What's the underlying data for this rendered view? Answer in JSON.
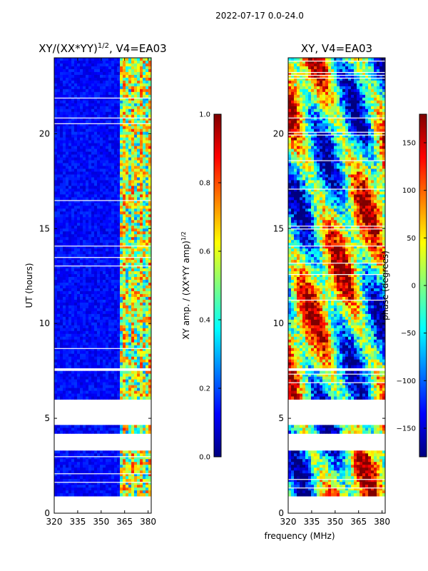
{
  "suptitle": "2022-07-17 0.0-24.0",
  "shared_xlabel": "frequency (MHz)",
  "colors": {
    "jet_stops": [
      "#00007f",
      "#0000ff",
      "#007fff",
      "#00ffff",
      "#7fff7f",
      "#ffff00",
      "#ff7f00",
      "#ff0000",
      "#7f0000"
    ]
  },
  "chart_data": [
    {
      "type": "heatmap",
      "title_main": "XY/(XX*YY)",
      "title_sup": "1/2",
      "title_rest": ", V4=EA03",
      "xlabel": "",
      "ylabel": "UT (hours)",
      "xlim": [
        320,
        382
      ],
      "ylim": [
        0,
        24
      ],
      "x_ticks": [
        320,
        335,
        350,
        365,
        380
      ],
      "y_ticks": [
        0,
        5,
        10,
        15,
        20
      ],
      "gaps_hours": [
        [
          0.0,
          0.85
        ],
        [
          3.3,
          4.2
        ],
        [
          4.6,
          5.95
        ],
        [
          7.45,
          7.7
        ]
      ],
      "colorbar": {
        "label_main": "XY amp. / (XX*YY amp)",
        "label_sup": "1/2",
        "range": [
          0.0,
          1.0
        ],
        "ticks": [
          "0.0",
          "0.2",
          "0.4",
          "0.6",
          "0.8",
          "1.0"
        ]
      }
    },
    {
      "type": "heatmap",
      "title_main": "XY, V4=EA03",
      "xlabel": "",
      "ylabel": "",
      "xlim": [
        320,
        382
      ],
      "ylim": [
        0,
        24
      ],
      "x_ticks": [
        320,
        335,
        350,
        365,
        380
      ],
      "y_ticks": [
        0,
        5,
        10,
        15,
        20
      ],
      "gaps_hours": [
        [
          0.0,
          0.85
        ],
        [
          3.3,
          4.2
        ],
        [
          4.6,
          5.95
        ],
        [
          7.45,
          7.7
        ]
      ],
      "colorbar": {
        "label_main": "phase (degrees)",
        "range": [
          -180,
          180
        ],
        "ticks": [
          "−150",
          "−100",
          "−50",
          "0",
          "50",
          "100",
          "150"
        ]
      }
    }
  ]
}
